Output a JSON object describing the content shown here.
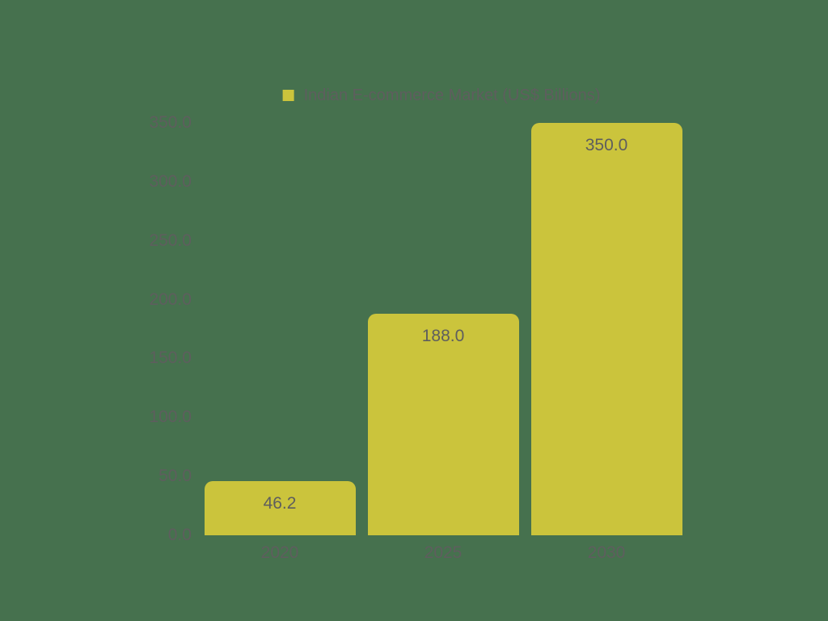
{
  "background_color": "#46714E",
  "text_color": "#5E5E5E",
  "chart_data": {
    "type": "bar",
    "title": "",
    "legend": {
      "label": "Indian E-commerce Market (US$ Billions)",
      "marker_color": "#CBC43C",
      "position": "top-center"
    },
    "categories": [
      "2020",
      "2025",
      "2030"
    ],
    "values": [
      46.2,
      188.0,
      350.0
    ],
    "value_labels": [
      "46.2",
      "188.0",
      "350.0"
    ],
    "bar_color": "#CBC43C",
    "ylim": [
      0,
      350
    ],
    "ytick_step": 50,
    "ytick_labels": [
      "0.0",
      "50.0",
      "100.0",
      "150.0",
      "200.0",
      "250.0",
      "300.0",
      "350.0"
    ],
    "grid": false,
    "axis_lines": false
  }
}
